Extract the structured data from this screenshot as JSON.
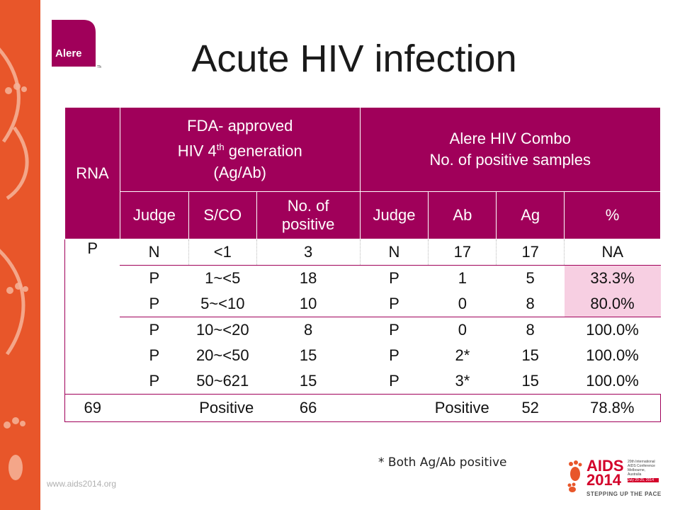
{
  "slide": {
    "title": "Acute HIV infection",
    "footnote": "* Both Ag/Ab positive",
    "url": "www.aids2014.org"
  },
  "logo": {
    "text": "Alere",
    "tm": "TM"
  },
  "conference": {
    "aids": "AIDS",
    "year": "2014",
    "tagline": "STEPPING UP THE PACE",
    "box_lines": [
      "20th International",
      "AIDS Conference",
      "Melbourne, Australia",
      "July 20-25, 2014"
    ]
  },
  "table": {
    "header": {
      "rna": "RNA",
      "fda_line1": "FDA- approved",
      "fda_line2_pre": "HIV 4",
      "fda_line2_sup": "th",
      "fda_line2_post": " generation",
      "fda_line3": "(Ag/Ab)",
      "alere_line1": "Alere HIV Combo",
      "alere_line2": "No. of positive samples"
    },
    "subheader": {
      "judge": "Judge",
      "sco": "S/CO",
      "nopos_line1": "No. of",
      "nopos_line2": "positive",
      "judge2": "Judge",
      "ab": "Ab",
      "ag": "Ag",
      "pct": "%"
    },
    "rna_p": "P",
    "rows": [
      [
        "N",
        "<1",
        "3",
        "N",
        "17",
        "17",
        "NA"
      ],
      [
        "P",
        "1~<5",
        "18",
        "P",
        "1",
        "5",
        "33.3%"
      ],
      [
        "P",
        "5~<10",
        "10",
        "P",
        "0",
        "8",
        "80.0%"
      ],
      [
        "P",
        "10~<20",
        "8",
        "P",
        "0",
        "8",
        "100.0%"
      ],
      [
        "P",
        "20~<50",
        "15",
        "P",
        "2*",
        "15",
        "100.0%"
      ],
      [
        "P",
        "50~621",
        "15",
        "P",
        "3*",
        "15",
        "100.0%"
      ]
    ],
    "total": {
      "rna": "69",
      "fda_label": "Positive",
      "fda_value": "66",
      "alere_label": "Positive",
      "alere_value": "52",
      "pct": "78.8%"
    }
  },
  "colors": {
    "header_bg": "#a0005a",
    "pink_row": "#f7cfe2",
    "sidebar": "#e8562a"
  }
}
